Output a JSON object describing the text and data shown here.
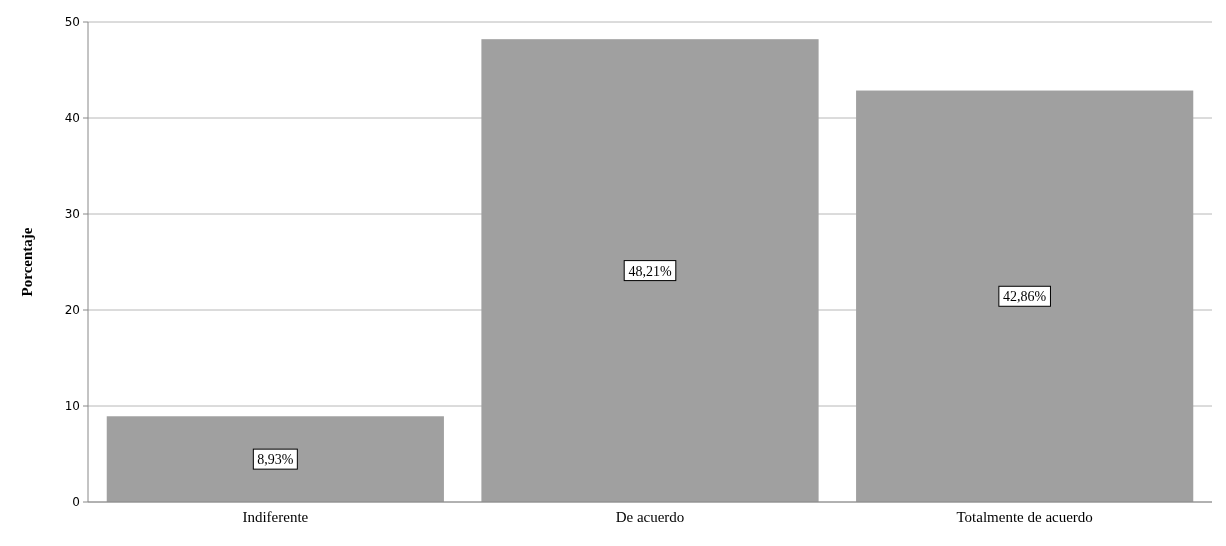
{
  "chart_data": {
    "type": "bar",
    "ylabel": "Porcentaje",
    "categories": [
      "Indiferente",
      "De acuerdo",
      "Totalmente de acuerdo"
    ],
    "values": [
      8.93,
      48.21,
      42.86
    ],
    "value_labels": [
      "8,93%",
      "48,21%",
      "42,86%"
    ],
    "color": "#a0a0a0",
    "ylim": [
      0,
      50
    ],
    "yticks": [
      0,
      10,
      20,
      30,
      40,
      50
    ],
    "grid": "y"
  }
}
